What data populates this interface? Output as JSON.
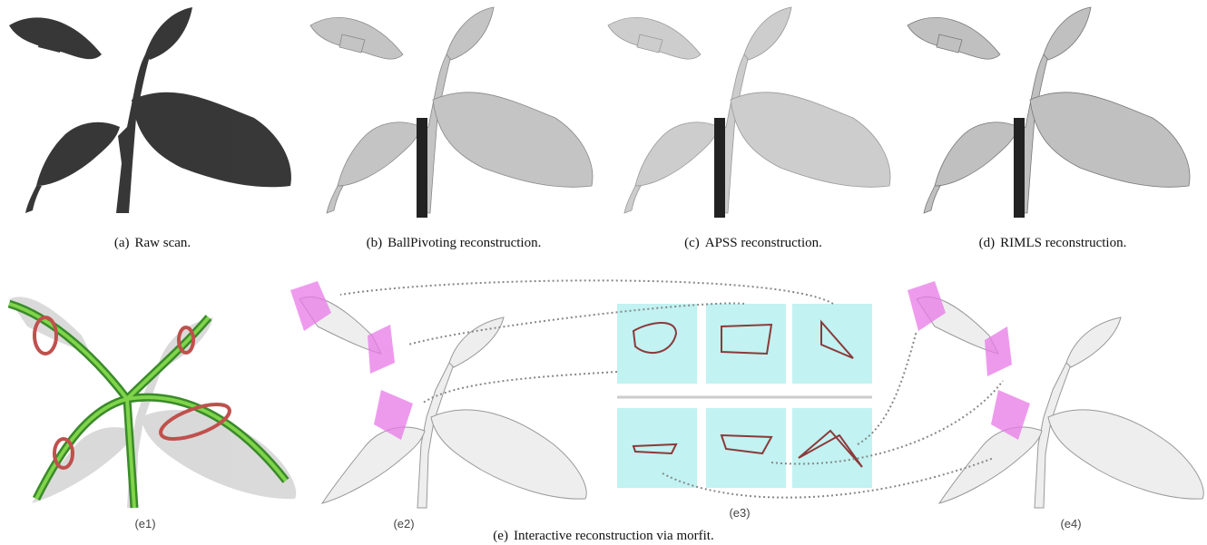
{
  "subfigures": [
    {
      "label": "(a)",
      "caption": "Raw scan."
    },
    {
      "label": "(b)",
      "caption": "BallPivoting reconstruction."
    },
    {
      "label": "(c)",
      "caption": "APSS reconstruction."
    },
    {
      "label": "(d)",
      "caption": "RIMLS reconstruction."
    }
  ],
  "panels": [
    "(e1)",
    "(e2)",
    "(e3)",
    "(e4)"
  ],
  "caption": {
    "label": "(e)",
    "text": "Interactive reconstruction via morfit."
  }
}
